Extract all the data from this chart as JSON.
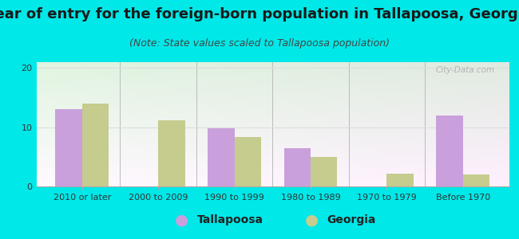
{
  "title": "Year of entry for the foreign-born population in Tallapoosa, Georgia",
  "subtitle": "(Note: State values scaled to Tallapoosa population)",
  "categories": [
    "2010 or later",
    "2000 to 2009",
    "1990 to 1999",
    "1980 to 1989",
    "1970 to 1979",
    "Before 1970"
  ],
  "tallapoosa_values": [
    13.0,
    0,
    9.8,
    6.5,
    0,
    12.0
  ],
  "georgia_values": [
    14.0,
    11.2,
    8.3,
    5.0,
    2.2,
    2.0
  ],
  "tallapoosa_color": "#c9a0dc",
  "georgia_color": "#c5cc8e",
  "bar_width": 0.35,
  "ylim": [
    0,
    21
  ],
  "yticks": [
    0,
    10,
    20
  ],
  "background_color": "#00e8e8",
  "title_fontsize": 13,
  "subtitle_fontsize": 9,
  "tick_fontsize": 8,
  "legend_fontsize": 10,
  "watermark": "City-Data.com"
}
